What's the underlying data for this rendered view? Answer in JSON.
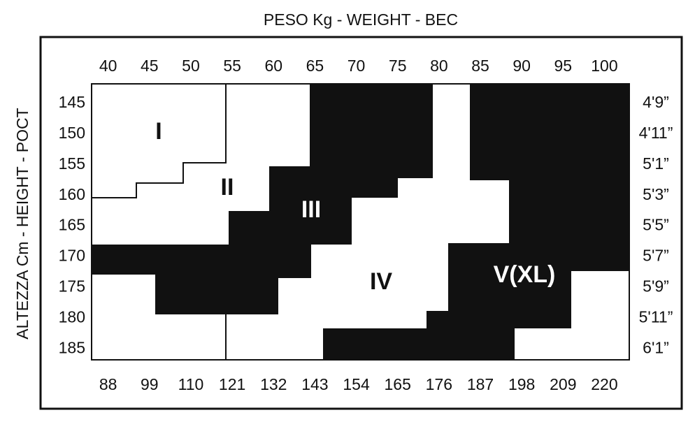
{
  "title": "PESO Kg - WEIGHT - BEC",
  "side_title": "ALTEZZA Cm - HEIGHT - POCT",
  "weight_kg": [
    "40",
    "45",
    "50",
    "55",
    "60",
    "65",
    "70",
    "75",
    "80",
    "85",
    "90",
    "95",
    "100"
  ],
  "weight_lbs": [
    "88",
    "99",
    "110",
    "121",
    "132",
    "143",
    "154",
    "165",
    "176",
    "187",
    "198",
    "209",
    "220"
  ],
  "height_cm": [
    "145",
    "150",
    "155",
    "160",
    "165",
    "170",
    "175",
    "180",
    "185"
  ],
  "height_ft": [
    "4'9”",
    "4'11”",
    "5'1”",
    "5'3”",
    "5'5”",
    "5'7”",
    "5'9”",
    "5'11”",
    "6'1”"
  ],
  "regions": [
    "I",
    "II",
    "III",
    "IV",
    "V(XL)"
  ]
}
